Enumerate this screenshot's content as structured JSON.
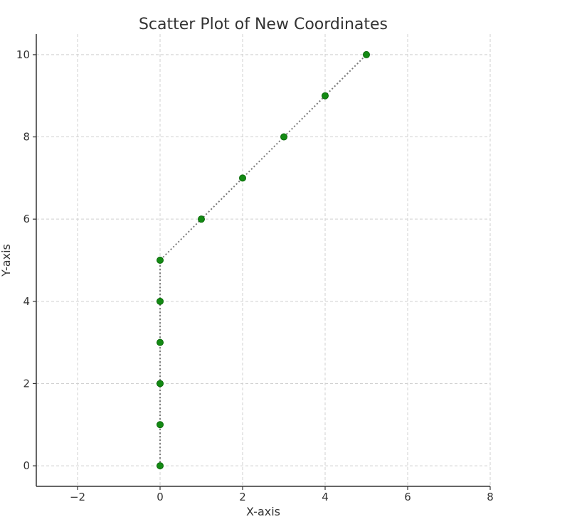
{
  "chart_data": {
    "type": "scatter",
    "title": "Scatter Plot of New Coordinates",
    "xlabel": "X-axis",
    "ylabel": "Y-axis",
    "xlim": [
      -3,
      8
    ],
    "ylim": [
      -0.5,
      10.5
    ],
    "xticks": [
      -2,
      0,
      2,
      4,
      6,
      8
    ],
    "xtick_labels": [
      "−2",
      "0",
      "2",
      "4",
      "6",
      "8"
    ],
    "yticks": [
      0,
      2,
      4,
      6,
      8,
      10
    ],
    "ytick_labels": [
      "0",
      "2",
      "4",
      "6",
      "8",
      "10"
    ],
    "grid": true,
    "series": [
      {
        "x": [
          0,
          0,
          0,
          0,
          0,
          0,
          1,
          2,
          3,
          4,
          5
        ],
        "y": [
          0,
          1,
          2,
          3,
          4,
          5,
          6,
          7,
          8,
          9,
          10
        ],
        "marker_color": "#138a13",
        "line_color": "#7a7a7a",
        "line_style": "dotted"
      }
    ]
  }
}
